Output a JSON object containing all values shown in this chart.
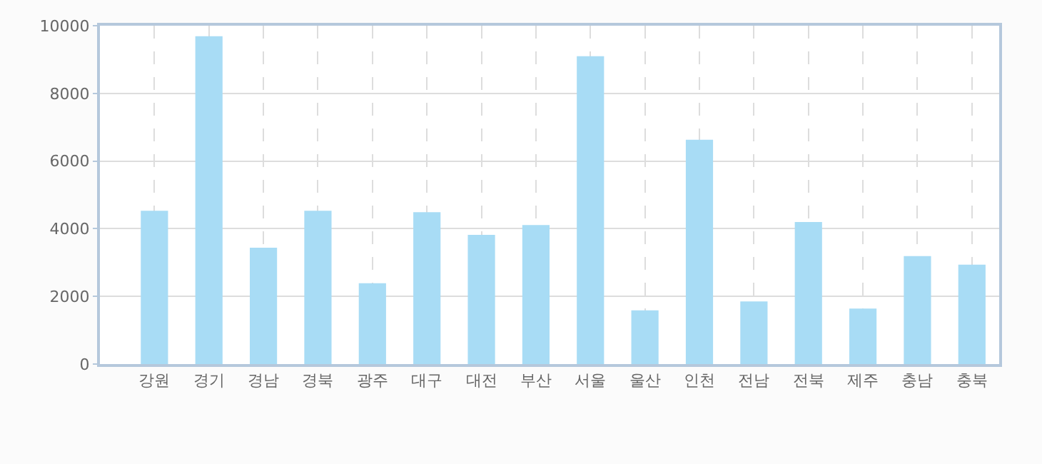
{
  "chart_data": {
    "type": "bar",
    "categories": [
      "강원",
      "경기",
      "경남",
      "경북",
      "광주",
      "대구",
      "대전",
      "부산",
      "서울",
      "울산",
      "인천",
      "전남",
      "전북",
      "제주",
      "충남",
      "충북"
    ],
    "series": [
      {
        "color": "#a8dcf5",
        "values": [
          4530,
          9690,
          3440,
          4530,
          2390,
          4490,
          3820,
          4110,
          9100,
          1590,
          6630,
          1850,
          4200,
          1640,
          3190,
          2940
        ]
      }
    ],
    "ylim": [
      0,
      10000
    ],
    "yticks": [
      0,
      2000,
      4000,
      6000,
      8000,
      10000
    ],
    "grid": true,
    "legend": false
  }
}
